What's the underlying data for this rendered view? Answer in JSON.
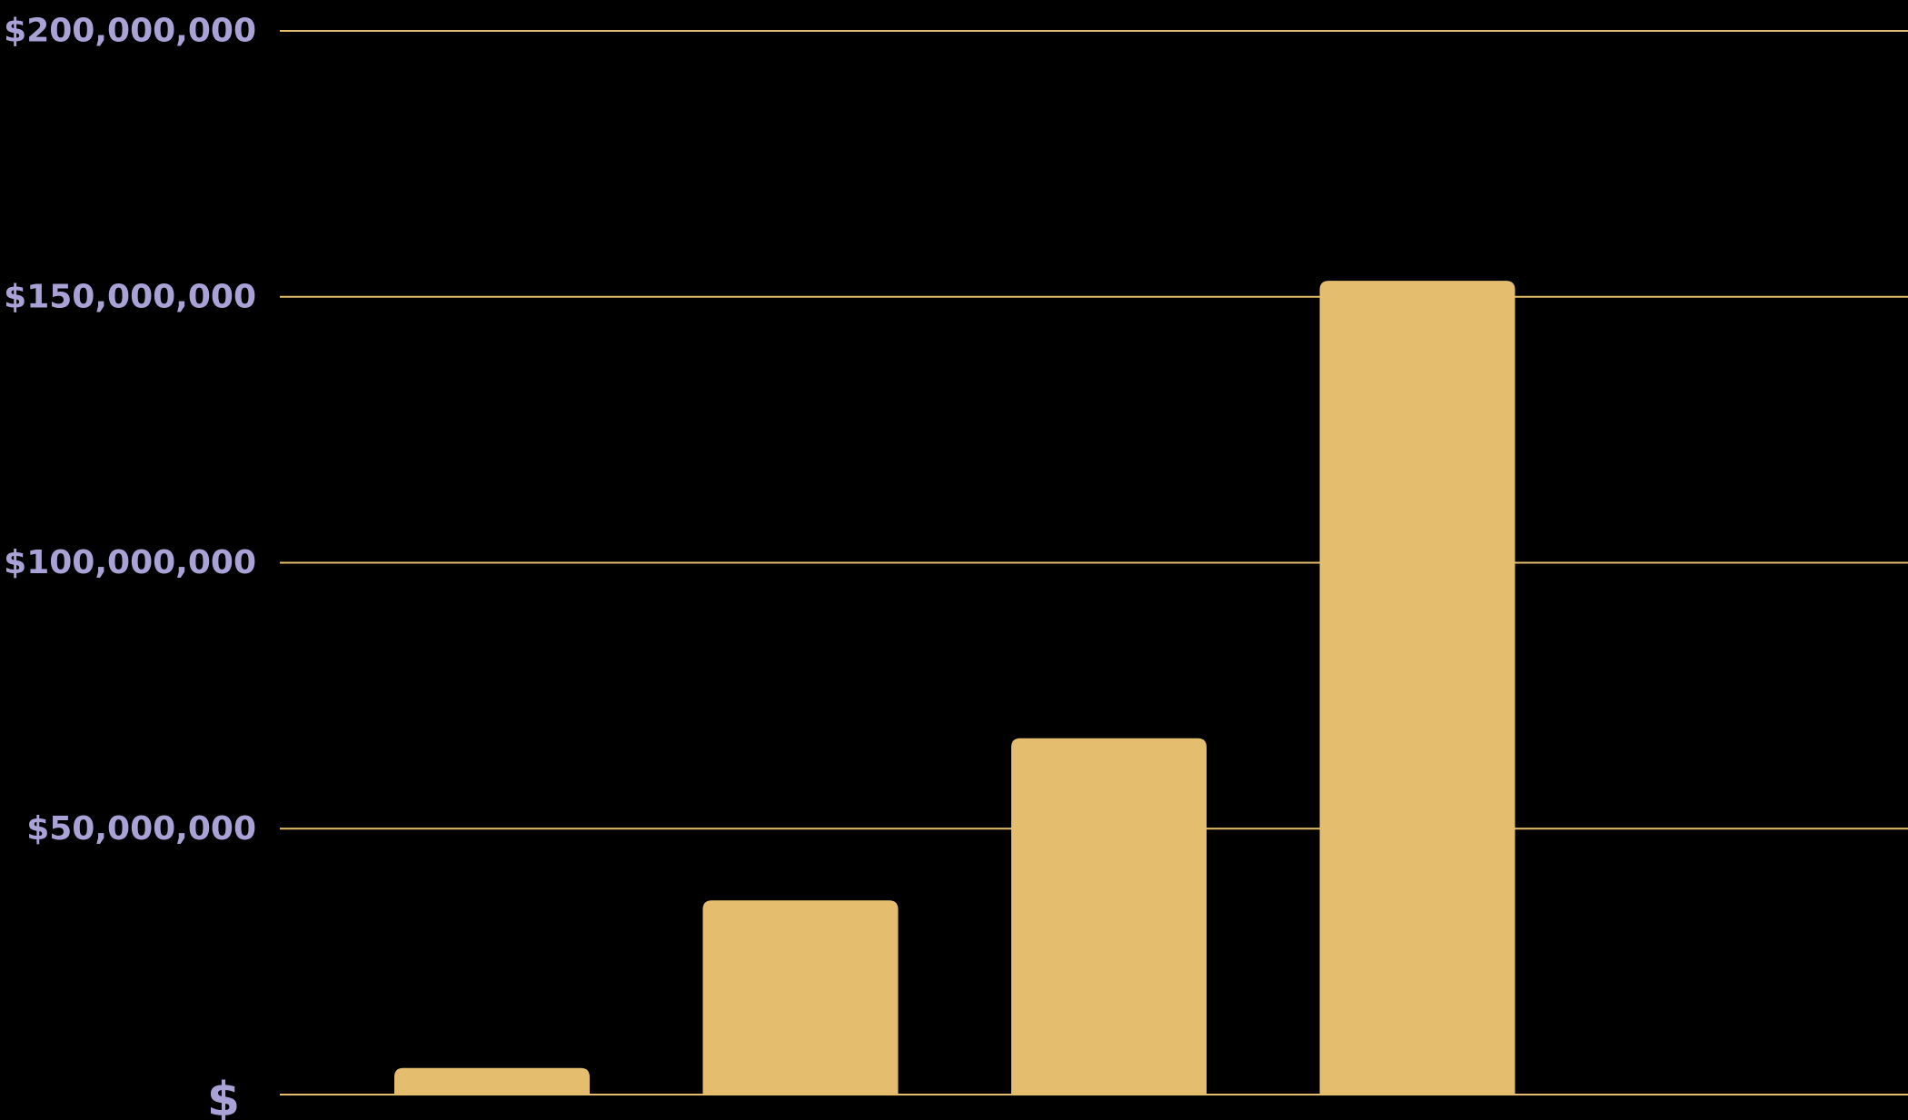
{
  "chart_data": {
    "type": "bar",
    "categories": [
      "",
      "",
      "",
      "",
      ""
    ],
    "values": [
      0,
      5000000,
      36500000,
      67000000,
      153000000
    ],
    "ylim": [
      0,
      200000000
    ],
    "yticks": [
      0,
      50000000,
      100000000,
      150000000,
      200000000
    ],
    "ytick_labels": [
      "$",
      "$50,000,000",
      "$100,000,000",
      "$150,000,000",
      "$200,000,000"
    ],
    "title": "",
    "xlabel": "",
    "ylabel": "",
    "grid": true,
    "legend": "none"
  },
  "colors": {
    "background": "#000000",
    "bar": "#E4BE6E",
    "gridline": "#E4BE6E",
    "tick_label": "#A8A2D6"
  }
}
